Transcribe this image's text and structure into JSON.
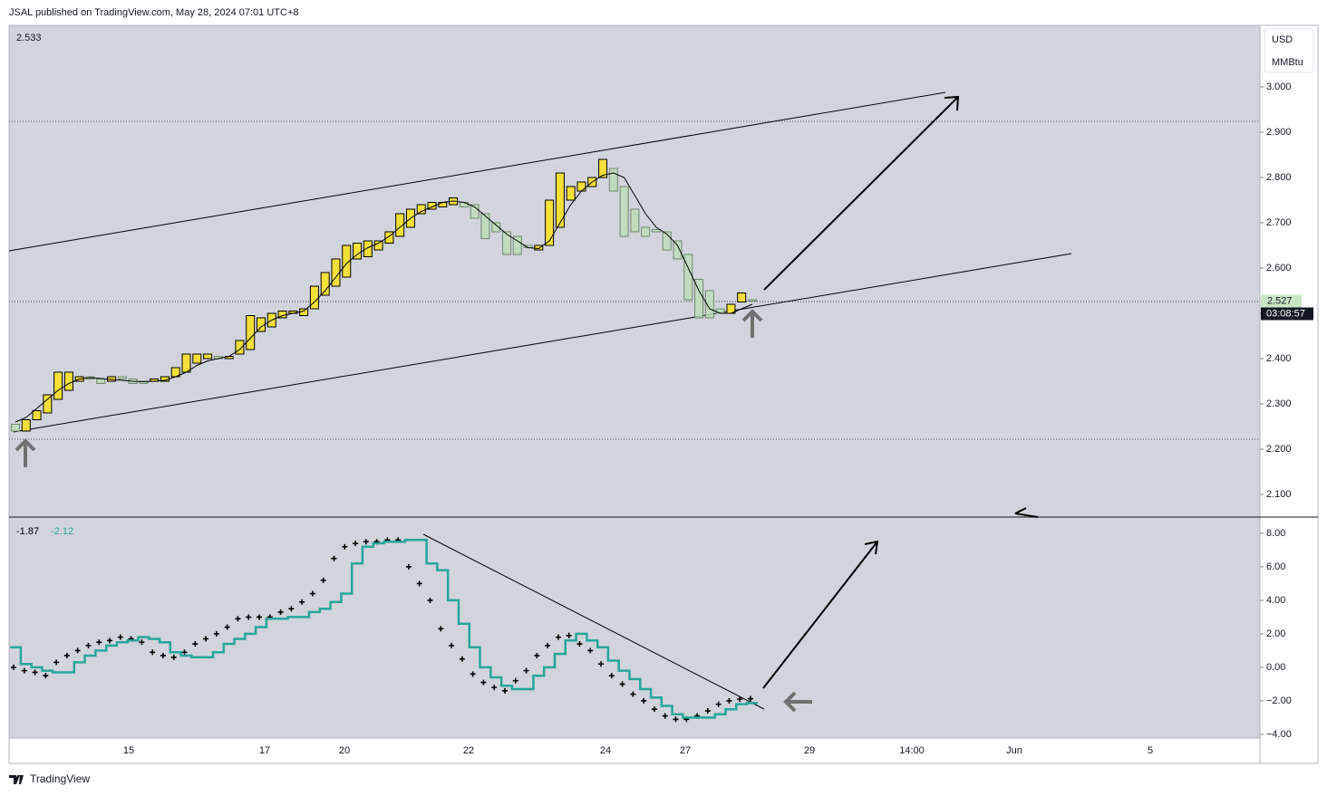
{
  "header": {
    "text": "JSAL published on TradingView.com, May 28, 2024 07:01 UTC+8"
  },
  "chart_data": [
    {
      "type": "candlestick",
      "legend_value": "2.533",
      "currency": "USD",
      "unit": "MMBtu",
      "countdown": "03:08:57",
      "colors": {
        "up": "#f5e03a",
        "down": "#bcdcb8",
        "ma": "#000000"
      },
      "open": [
        2.255,
        2.24,
        2.265,
        2.28,
        2.31,
        2.33,
        2.35,
        2.36,
        2.355,
        2.35,
        2.36,
        2.355,
        2.35,
        2.35,
        2.35,
        2.36,
        2.37,
        2.39,
        2.4,
        2.405,
        2.4,
        2.41,
        2.42,
        2.46,
        2.47,
        2.49,
        2.5,
        2.495,
        2.51,
        2.54,
        2.56,
        2.58,
        2.62,
        2.625,
        2.64,
        2.655,
        2.67,
        2.69,
        2.72,
        2.73,
        2.735,
        2.74,
        2.745,
        2.74,
        2.72,
        2.7,
        2.68,
        2.67,
        2.65,
        2.64,
        2.65,
        2.69,
        2.75,
        2.77,
        2.78,
        2.8,
        2.82,
        2.78,
        2.73,
        2.69,
        2.685,
        2.68,
        2.66,
        2.63,
        2.575,
        2.55,
        2.51,
        2.5,
        2.525,
        2.53
      ],
      "close": [
        2.24,
        2.265,
        2.285,
        2.32,
        2.37,
        2.37,
        2.36,
        2.355,
        2.345,
        2.36,
        2.355,
        2.345,
        2.345,
        2.355,
        2.36,
        2.38,
        2.41,
        2.41,
        2.41,
        2.4,
        2.405,
        2.44,
        2.495,
        2.49,
        2.5,
        2.505,
        2.505,
        2.51,
        2.56,
        2.59,
        2.62,
        2.65,
        2.655,
        2.66,
        2.66,
        2.68,
        2.72,
        2.73,
        2.74,
        2.745,
        2.745,
        2.755,
        2.735,
        2.71,
        2.665,
        2.68,
        2.63,
        2.63,
        2.645,
        2.65,
        2.75,
        2.81,
        2.78,
        2.79,
        2.8,
        2.84,
        2.77,
        2.67,
        2.68,
        2.67,
        2.68,
        2.64,
        2.62,
        2.53,
        2.49,
        2.49,
        2.5,
        2.52,
        2.545,
        2.527
      ],
      "ma": [
        2.26,
        2.27,
        2.29,
        2.31,
        2.33,
        2.345,
        2.355,
        2.358,
        2.356,
        2.354,
        2.352,
        2.35,
        2.349,
        2.35,
        2.352,
        2.36,
        2.37,
        2.385,
        2.395,
        2.4,
        2.405,
        2.42,
        2.445,
        2.47,
        2.485,
        2.495,
        2.5,
        2.505,
        2.525,
        2.55,
        2.58,
        2.61,
        2.63,
        2.645,
        2.655,
        2.67,
        2.69,
        2.71,
        2.725,
        2.735,
        2.745,
        2.748,
        2.745,
        2.735,
        2.715,
        2.695,
        2.675,
        2.66,
        2.645,
        2.643,
        2.66,
        2.7,
        2.74,
        2.77,
        2.79,
        2.805,
        2.81,
        2.8,
        2.76,
        2.72,
        2.69,
        2.675,
        2.65,
        2.6,
        2.55,
        2.51,
        2.5,
        2.5,
        2.51,
        2.52
      ],
      "ylim": [
        2.05,
        3.136
      ],
      "yticks": [
        {
          "value": 3,
          "label": "3.000"
        },
        {
          "value": 2.9,
          "label": "2.900"
        },
        {
          "value": 2.8,
          "label": "2.800"
        },
        {
          "value": 2.7,
          "label": "2.700"
        },
        {
          "value": 2.6,
          "label": "2.600"
        },
        {
          "value": 2.5,
          "label": "2.500"
        },
        {
          "value": 2.4,
          "label": "2.400"
        },
        {
          "value": 2.3,
          "label": "2.300"
        },
        {
          "value": 2.2,
          "label": "2.200"
        },
        {
          "value": 2.1,
          "label": "2.100"
        }
      ]
    },
    {
      "type": "line",
      "ylim": [
        -4.22,
        8.97
      ],
      "yticks": [
        {
          "value": 8,
          "label": "8.00"
        },
        {
          "value": 6,
          "label": "6.00"
        },
        {
          "value": 4,
          "label": "4.00"
        },
        {
          "value": 2,
          "label": "2.00"
        },
        {
          "value": 0,
          "label": "0.00"
        },
        {
          "value": -2,
          "label": "−2.00"
        },
        {
          "value": -4,
          "label": "−4.00"
        }
      ],
      "series": [
        {
          "color": "#000000",
          "style": "dots",
          "values": [
            0.0,
            -0.2,
            -0.3,
            -0.5,
            0.3,
            0.7,
            1.0,
            1.3,
            1.5,
            1.6,
            1.8,
            1.7,
            1.5,
            0.9,
            0.7,
            0.6,
            0.9,
            1.4,
            1.7,
            2.0,
            2.4,
            2.9,
            3.0,
            3.0,
            3.0,
            3.3,
            3.5,
            3.9,
            4.4,
            5.2,
            6.5,
            7.2,
            7.4,
            7.5,
            7.5,
            7.6,
            7.6,
            6.0,
            5.0,
            4.0,
            2.3,
            1.3,
            0.5,
            -0.4,
            -0.9,
            -1.2,
            -1.4,
            -0.8,
            -0.2,
            0.7,
            1.3,
            1.8,
            1.9,
            1.4,
            1.0,
            0.2,
            -0.5,
            -1.0,
            -1.6,
            -2.0,
            -2.5,
            -2.9,
            -3.1,
            -3.1,
            -2.9,
            -2.6,
            -2.2,
            -2.0,
            -1.9,
            -1.87
          ]
        },
        {
          "color": "#26a69a",
          "style": "step",
          "values": [
            1.2,
            0.2,
            0.0,
            -0.2,
            -0.3,
            -0.3,
            0.3,
            0.7,
            1.0,
            1.3,
            1.5,
            1.6,
            1.8,
            1.7,
            1.5,
            0.9,
            0.7,
            0.6,
            0.6,
            0.9,
            1.4,
            1.7,
            2.0,
            2.4,
            2.9,
            2.9,
            3.0,
            3.0,
            3.3,
            3.5,
            3.9,
            4.4,
            6.2,
            7.2,
            7.4,
            7.5,
            7.5,
            7.6,
            7.6,
            6.2,
            5.8,
            4.0,
            2.6,
            1.2,
            0.0,
            -0.6,
            -1.1,
            -1.3,
            -1.3,
            -0.5,
            0.0,
            0.8,
            1.6,
            2.0,
            1.6,
            1.2,
            0.4,
            -0.2,
            -0.7,
            -1.3,
            -1.8,
            -2.3,
            -2.8,
            -3.0,
            -3.0,
            -3.0,
            -2.8,
            -2.5,
            -2.2,
            -2.12
          ]
        }
      ]
    }
  ],
  "time_axis_labels": [
    "15",
    "17",
    "20",
    "22",
    "24",
    "27",
    "29",
    "14:00",
    "Jun",
    "5"
  ],
  "footer": {
    "brand": "TradingView"
  }
}
